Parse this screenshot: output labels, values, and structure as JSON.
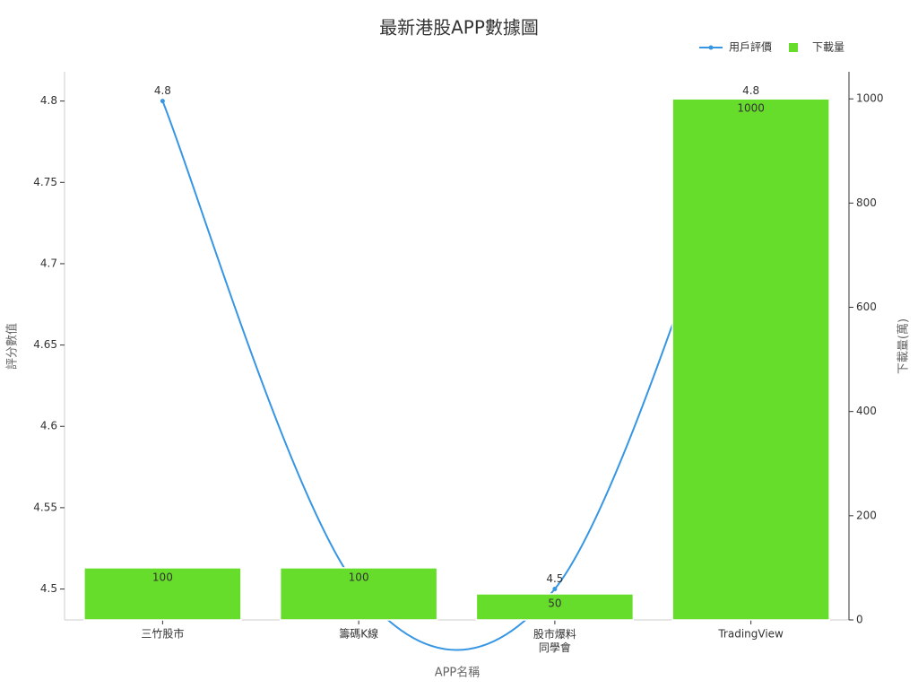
{
  "chart_data": {
    "type": "bar",
    "title": "最新港股APP數據圖",
    "x_label": "APP名稱",
    "y_label": "評分數值",
    "y2_label": "下載量(萬)",
    "categories": [
      "三竹股市",
      "籌碼K線",
      "股市爆料\n同學會",
      "TradingView"
    ],
    "series": [
      {
        "name": "用戶評價",
        "type": "line",
        "color": "#3796e4",
        "values": [
          4.8,
          4.5,
          4.5,
          4.8
        ]
      },
      {
        "name": "下載量",
        "type": "bar",
        "axis": "y2",
        "color": "#66dd2a",
        "values": [
          100,
          100,
          50,
          1000
        ]
      }
    ],
    "ylim": [
      4.481,
      4.818
    ],
    "yticks": [
      4.5,
      4.55,
      4.6,
      4.65,
      4.7,
      4.75,
      4.8
    ],
    "y2lim": [
      0,
      1052
    ],
    "y2ticks": [
      0,
      200,
      400,
      600,
      800,
      1000
    ],
    "legend": "top-right",
    "grid": false
  }
}
